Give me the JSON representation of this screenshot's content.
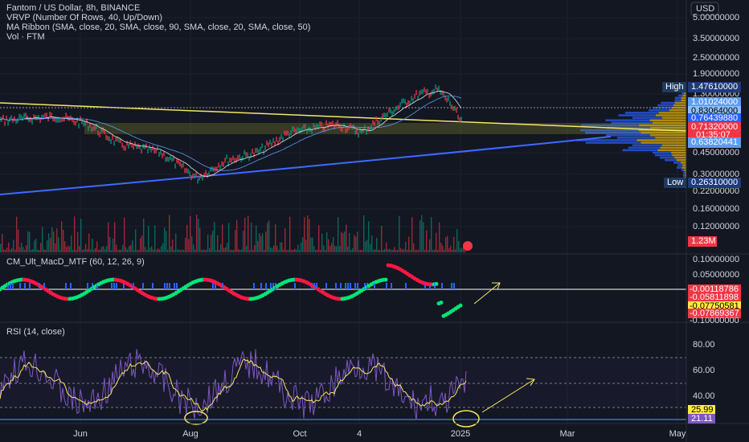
{
  "header": {
    "symbol": "Fantom / US Dollar, 8h, BINANCE",
    "indicators": [
      "VRVP (Number Of Rows, 40, Up/Down)",
      "MA Ribbon (SMA, close, 20, SMA, close, 90, SMA, close, 20, SMA, close, 50)",
      "Vol · FTM"
    ]
  },
  "currency": "USD",
  "price_axis": [
    "5.00000000",
    "3.50000000",
    "2.50000000",
    "1.90000000",
    "1.30000000",
    "0.45000000",
    "0.30000000",
    "0.22000000",
    "0.16000000",
    "0.12000000"
  ],
  "price_badges": {
    "high_label": "High",
    "high": "1.47610000",
    "ma1": "1.01024000",
    "ma2": "0.83064000",
    "ma3": "0.76439880",
    "last": "0.71320000",
    "countdown": "01:35:07",
    "ma4": "0.63820441",
    "low_label": "Low",
    "low": "0.26310000"
  },
  "volume_badge": "1.23M",
  "macd": {
    "title": "CM_Ult_MacD_MTF (60, 12, 26, 9)",
    "axis": [
      "0.10000000",
      "0.05000000",
      "-0.10000000"
    ],
    "badges": [
      "-0.00118786",
      "-0.05811898",
      "-0.07750581",
      "-0.07869367"
    ]
  },
  "rsi": {
    "title": "RSI (14, close)",
    "axis": [
      "80.00",
      "60.00",
      "40.00"
    ],
    "badges": [
      "25.99",
      "21.11"
    ]
  },
  "time_axis": [
    "Jun",
    "Aug",
    "Oct",
    "4",
    "2025",
    "Mar",
    "May"
  ]
}
